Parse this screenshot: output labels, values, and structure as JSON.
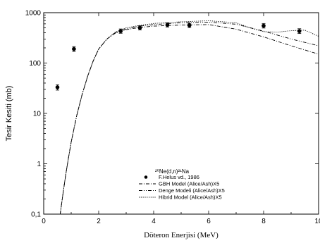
{
  "chart_data": {
    "type": "scatter",
    "title": "",
    "xlabel": "Döteron Enerjisi (MeV)",
    "ylabel": "Tesir Kesiti (mb)",
    "xlim": [
      0,
      10
    ],
    "ylim": [
      0.1,
      1000
    ],
    "yscale": "log",
    "x_ticks": [
      0,
      2,
      4,
      6,
      8,
      10
    ],
    "x_tick_labels": [
      "0",
      "2",
      "4",
      "6",
      "8",
      "10"
    ],
    "y_ticks": [
      0.1,
      1,
      10,
      100,
      1000
    ],
    "y_tick_labels": [
      "0,1",
      "1",
      "10",
      "100",
      "1000"
    ],
    "grid": false,
    "legend_placement": "bottom-center",
    "legend_title": "²⁰Ne(d,n)²¹Na",
    "series": [
      {
        "name": "F.Helus vd., 1986",
        "style": "points",
        "x": [
          0.5,
          1.1,
          2.8,
          3.5,
          4.5,
          5.3,
          8.0,
          9.3
        ],
        "y": [
          33,
          190,
          430,
          500,
          570,
          560,
          550,
          430
        ],
        "err_low": [
          29,
          170,
          390,
          455,
          520,
          505,
          495,
          385
        ],
        "err_high": [
          37,
          212,
          475,
          550,
          625,
          615,
          610,
          480
        ]
      },
      {
        "name": "GBH Model (Alice/Ash)X5",
        "style": "dashdot",
        "x": [
          0.6,
          0.7,
          0.8,
          0.9,
          1.0,
          1.2,
          1.4,
          1.6,
          1.8,
          2.0,
          2.3,
          2.6,
          3.0,
          3.5,
          4.0,
          5.0,
          6.0,
          7.0,
          8.0,
          9.0,
          10.0
        ],
        "y": [
          0.1,
          0.25,
          0.6,
          1.3,
          2.7,
          9,
          24,
          55,
          110,
          190,
          300,
          390,
          460,
          510,
          540,
          570,
          580,
          470,
          330,
          220,
          150
        ]
      },
      {
        "name": "Denge Modeli (Alice/Ash)X5",
        "style": "dashdotdot",
        "x": [
          0.6,
          0.7,
          0.8,
          0.9,
          1.0,
          1.2,
          1.4,
          1.6,
          1.8,
          2.0,
          2.3,
          2.6,
          3.0,
          3.5,
          4.0,
          5.0,
          6.0,
          7.0,
          8.0,
          9.0,
          10.0
        ],
        "y": [
          0.1,
          0.25,
          0.6,
          1.3,
          2.7,
          9,
          24,
          55,
          110,
          190,
          300,
          400,
          480,
          540,
          580,
          630,
          650,
          590,
          430,
          300,
          220
        ]
      },
      {
        "name": "Hibrid Model (Alice/Ash)X5",
        "style": "dotted",
        "x": [
          0.6,
          0.7,
          0.8,
          0.9,
          1.0,
          1.2,
          1.4,
          1.6,
          1.8,
          2.0,
          2.3,
          2.6,
          3.0,
          3.5,
          4.0,
          5.0,
          6.0,
          7.0,
          7.5,
          8.0,
          8.5,
          9.0,
          9.5,
          10.0
        ],
        "y": [
          0.1,
          0.25,
          0.6,
          1.3,
          2.7,
          9,
          24,
          55,
          110,
          190,
          300,
          410,
          500,
          560,
          610,
          660,
          690,
          630,
          500,
          420,
          410,
          440,
          450,
          340
        ]
      }
    ]
  }
}
